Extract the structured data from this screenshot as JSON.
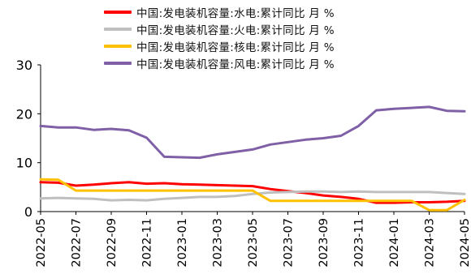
{
  "chart_data": {
    "type": "line",
    "x": [
      "2022-05",
      "2022-06",
      "2022-07",
      "2022-08",
      "2022-09",
      "2022-10",
      "2022-11",
      "2022-12",
      "2023-01",
      "2023-02",
      "2023-03",
      "2023-04",
      "2023-05",
      "2023-06",
      "2023-07",
      "2023-08",
      "2023-09",
      "2023-10",
      "2023-11",
      "2023-12",
      "2024-01",
      "2024-02",
      "2024-03",
      "2024-04",
      "2024-05"
    ],
    "xticks": [
      "2022-05",
      "2022-07",
      "2022-09",
      "2022-11",
      "2023-01",
      "2023-03",
      "2023-05",
      "2023-07",
      "2023-09",
      "2023-11",
      "2024-01",
      "2024-03",
      "2024-05"
    ],
    "ylim": [
      0,
      30
    ],
    "yticks": [
      "0",
      "10",
      "20",
      "30"
    ],
    "grid": false,
    "legend_position": "top",
    "series": [
      {
        "name": "中国:发电装机容量:水电:累计同比 月 %",
        "color": "#ff0000",
        "values": [
          6.0,
          5.9,
          5.3,
          5.5,
          5.8,
          6.0,
          5.7,
          5.8,
          5.6,
          5.5,
          5.4,
          5.3,
          5.2,
          4.6,
          4.2,
          3.8,
          3.3,
          3.0,
          2.6,
          1.8,
          1.8,
          1.9,
          1.9,
          2.0,
          2.2
        ]
      },
      {
        "name": "中国:发电装机容量:火电:累计同比 月 %",
        "color": "#bfbfbf",
        "values": [
          2.7,
          2.8,
          2.7,
          2.6,
          2.3,
          2.4,
          2.3,
          2.6,
          2.8,
          3.0,
          3.0,
          3.2,
          3.6,
          3.9,
          4.0,
          4.1,
          4.1,
          4.0,
          4.1,
          4.0,
          4.0,
          4.0,
          4.0,
          3.8,
          3.6
        ]
      },
      {
        "name": "中国:发电装机容量:核电:累计同比 月 %",
        "color": "#ffc000",
        "values": [
          6.6,
          6.5,
          4.3,
          4.3,
          4.3,
          4.3,
          4.3,
          4.3,
          4.3,
          4.3,
          4.3,
          4.3,
          4.3,
          2.2,
          2.2,
          2.2,
          2.2,
          2.2,
          2.2,
          2.2,
          2.2,
          2.2,
          0.3,
          0.3,
          2.4
        ]
      },
      {
        "name": "中国:发电装机容量:风电:累计同比 月 %",
        "color": "#7f5fa6",
        "values": [
          17.5,
          17.2,
          17.2,
          16.7,
          16.9,
          16.6,
          15.1,
          11.2,
          11.1,
          11.0,
          11.7,
          12.2,
          12.7,
          13.7,
          14.2,
          14.7,
          15.0,
          15.5,
          17.5,
          20.7,
          21.0,
          21.2,
          21.4,
          20.6,
          20.5
        ]
      }
    ]
  }
}
